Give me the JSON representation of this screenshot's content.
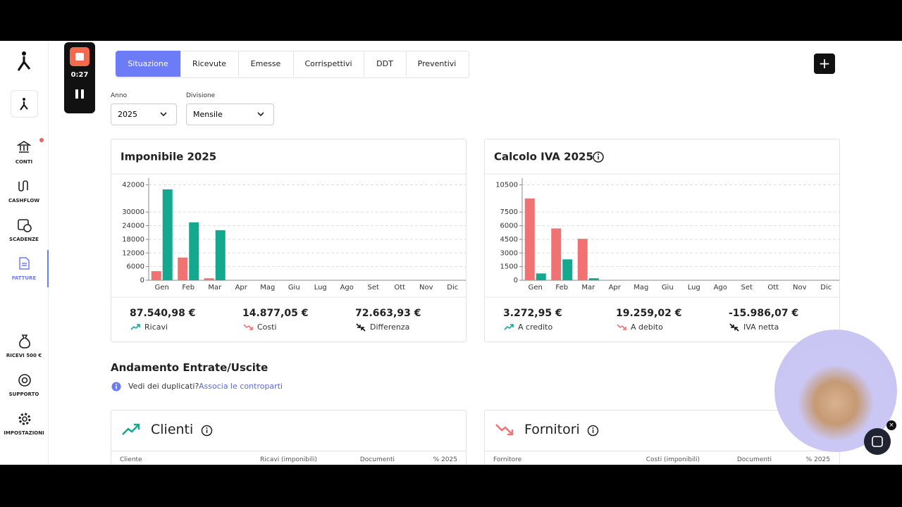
{
  "recorder": {
    "time": "0:27"
  },
  "sidebar": {
    "items": [
      "CONTI",
      "CASHFLOW",
      "SCADENZE",
      "FATTURE",
      "RICEVI 500 €",
      "SUPPORTO",
      "IMPOSTAZIONI"
    ]
  },
  "tabs": [
    "Situazione",
    "Ricevute",
    "Emesse",
    "Corrispettivi",
    "DDT",
    "Preventivi"
  ],
  "filters": [
    {
      "label": "Anno",
      "value": "2025"
    },
    {
      "label": "Divisione",
      "value": "Mensile"
    }
  ],
  "chart_data": [
    {
      "type": "bar",
      "title": "Imponibile 2025",
      "categories": [
        "Gen",
        "Feb",
        "Mar",
        "Apr",
        "Mag",
        "Giu",
        "Lug",
        "Ago",
        "Set",
        "Ott",
        "Nov",
        "Dic"
      ],
      "series": [
        {
          "color": "#f07272",
          "values": [
            4000,
            10000,
            877,
            null,
            null,
            null,
            null,
            null,
            null,
            null,
            null,
            null
          ]
        },
        {
          "color": "#14a88e",
          "values": [
            40000,
            25500,
            22040.98,
            null,
            null,
            null,
            null,
            null,
            null,
            null,
            null,
            null
          ]
        }
      ],
      "ylim": [
        0,
        44000
      ],
      "yticks": [
        0,
        6000,
        12000,
        18000,
        24000,
        30000,
        42000
      ],
      "grid": true
    },
    {
      "type": "bar",
      "title": "Calcolo IVA 2025",
      "categories": [
        "Gen",
        "Feb",
        "Mar",
        "Apr",
        "Mag",
        "Giu",
        "Lug",
        "Ago",
        "Set",
        "Ott",
        "Nov",
        "Dic"
      ],
      "series": [
        {
          "color": "#f07272",
          "values": [
            9000,
            5700,
            4559.02,
            null,
            null,
            null,
            null,
            null,
            null,
            null,
            null,
            null
          ]
        },
        {
          "color": "#14a88e",
          "values": [
            750,
            2300,
            222.95,
            null,
            null,
            null,
            null,
            null,
            null,
            null,
            null,
            null
          ]
        }
      ],
      "ylim": [
        0,
        11000
      ],
      "yticks": [
        0,
        1500,
        3000,
        4500,
        6000,
        7500,
        10500
      ],
      "grid": true
    }
  ],
  "summaries": [
    [
      {
        "value": "87.540,98 €",
        "label": "Ricavi"
      },
      {
        "value": "14.877,05 €",
        "label": "Costi"
      },
      {
        "value": "72.663,93 €",
        "label": "Differenza"
      }
    ],
    [
      {
        "value": "3.272,95 €",
        "label": "A credito"
      },
      {
        "value": "19.259,02 €",
        "label": "A debito"
      },
      {
        "value": "-15.986,07 €",
        "label": "IVA netta"
      }
    ]
  ],
  "section": {
    "title": "Andamento Entrate/Uscite",
    "notice": "Vedi dei duplicati?",
    "link": "Associa le controparti"
  },
  "tables": [
    {
      "title": "Clienti",
      "columns": [
        "Cliente",
        "Ricavi (imponibili)",
        "Documenti",
        "% 2025"
      ]
    },
    {
      "title": "Fornitori",
      "columns": [
        "Fornitore",
        "Costi (imponibili)",
        "Documenti",
        "% 2025"
      ]
    }
  ]
}
